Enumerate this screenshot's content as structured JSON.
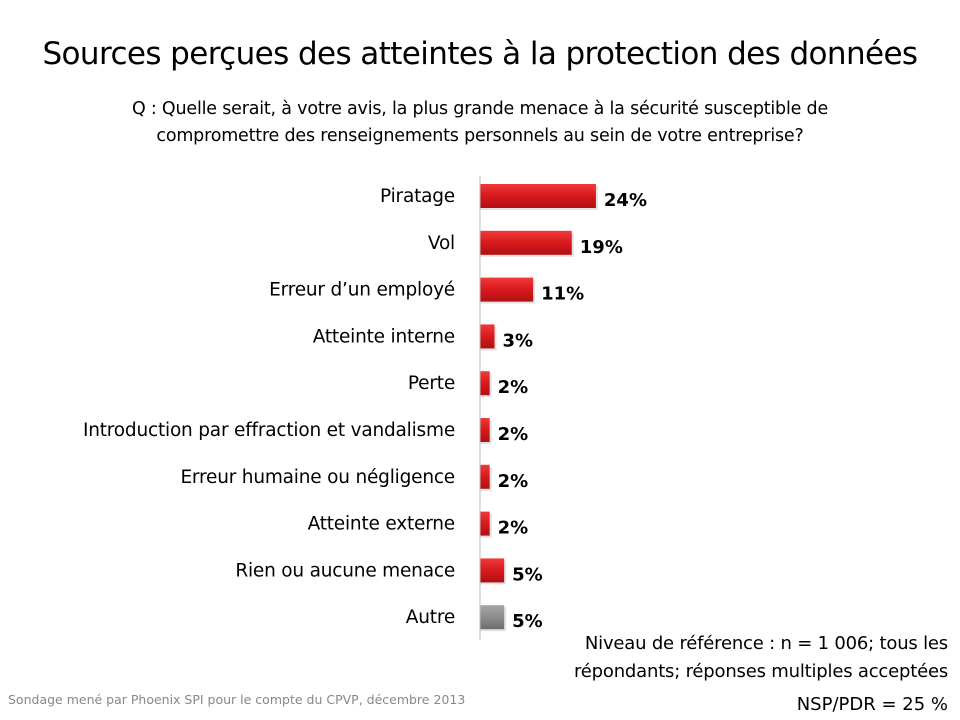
{
  "title": "Sources perçues des atteintes à la protection des données",
  "question_line1": "Q : Quelle serait, à votre avis, la plus grande menace à la sécurité susceptible de",
  "question_line2": "compromettre des renseignements personnels au sein de votre entreprise?",
  "note_line1": "Niveau de référence : n = 1 006; tous les",
  "note_line2": "répondants; réponses multiples acceptées",
  "nsp": "NSP/PDR = 25 %",
  "source": "Sondage mené par Phoenix SPI pour le compte du CPVP, décembre 2013",
  "colors": {
    "bar": "#d7191c",
    "bar_other": "#8c8c8c",
    "axis": "#bfbfbf"
  },
  "chart_data": {
    "type": "bar",
    "orientation": "horizontal",
    "categories": [
      "Piratage",
      "Vol",
      "Erreur d’un employé",
      "Atteinte interne",
      "Perte",
      "Introduction par effraction et vandalisme",
      "Erreur humaine ou négligence",
      "Atteinte externe",
      "Rien ou aucune menace",
      "Autre"
    ],
    "values": [
      24,
      19,
      11,
      3,
      2,
      2,
      2,
      2,
      5,
      5
    ],
    "value_labels": [
      "24%",
      "19%",
      "11%",
      "3%",
      "2%",
      "2%",
      "2%",
      "2%",
      "5%",
      "5%"
    ],
    "bar_colors": [
      "red",
      "red",
      "red",
      "red",
      "red",
      "red",
      "red",
      "red",
      "red",
      "gray"
    ],
    "unit": "%",
    "grid": false,
    "legend": "none"
  }
}
